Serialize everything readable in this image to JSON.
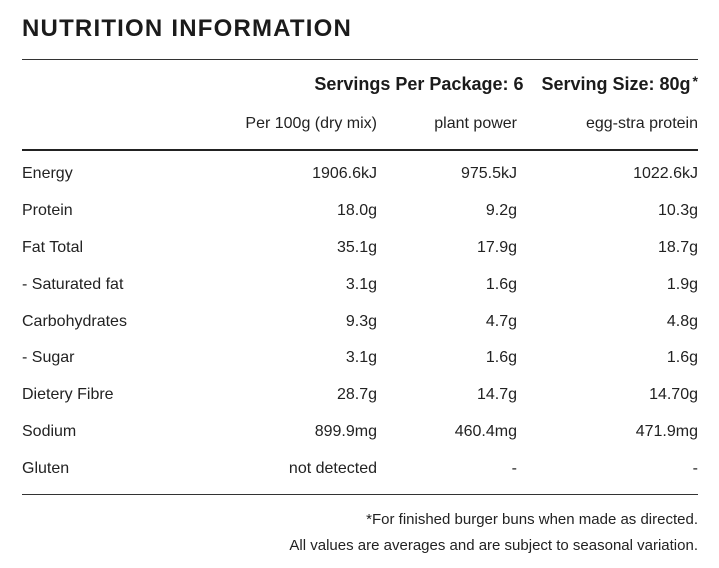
{
  "title": "NUTRITION INFORMATION",
  "servings_per_package": "Servings Per Package: 6",
  "serving_size": "Serving Size: 80g",
  "serving_size_mark": "*",
  "columns": [
    "Per 100g (dry mix)",
    "plant power",
    "egg-stra protein"
  ],
  "rows": [
    {
      "label": "Energy",
      "values": [
        "1906.6kJ",
        "975.5kJ",
        "1022.6kJ"
      ]
    },
    {
      "label": "Protein",
      "values": [
        "18.0g",
        "9.2g",
        "10.3g"
      ]
    },
    {
      "label": "Fat Total",
      "values": [
        "35.1g",
        "17.9g",
        "18.7g"
      ]
    },
    {
      "label": "- Saturated fat",
      "values": [
        "3.1g",
        "1.6g",
        "1.9g"
      ]
    },
    {
      "label": "Carbohydrates",
      "values": [
        "9.3g",
        "4.7g",
        "4.8g"
      ]
    },
    {
      "label": "- Sugar",
      "values": [
        "3.1g",
        "1.6g",
        "1.6g"
      ]
    },
    {
      "label": "Dietery Fibre",
      "values": [
        "28.7g",
        "14.7g",
        "14.70g"
      ]
    },
    {
      "label": "Sodium",
      "values": [
        "899.9mg",
        "460.4mg",
        "471.9mg"
      ]
    },
    {
      "label": "Gluten",
      "values": [
        "not detected",
        "-",
        "-"
      ]
    }
  ],
  "footnotes": [
    "*For finished burger buns when made as directed.",
    "All values are averages and are subject to seasonal variation."
  ]
}
